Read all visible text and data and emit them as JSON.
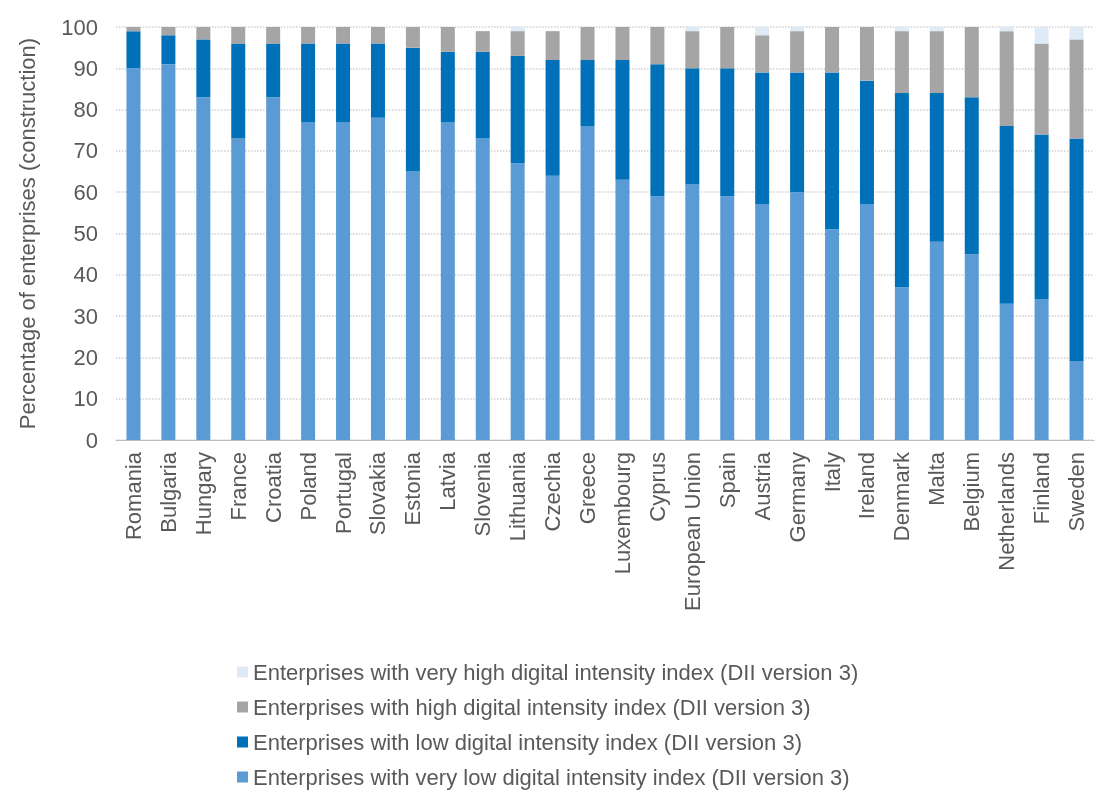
{
  "chart_data": {
    "type": "bar",
    "stacked": true,
    "ylabel": "Percentage of enterprises (construction)",
    "categories": [
      "Romania",
      "Bulgaria",
      "Hungary",
      "France",
      "Croatia",
      "Poland",
      "Portugal",
      "Slovakia",
      "Estonia",
      "Latvia",
      "Slovenia",
      "Lithuania",
      "Czechia",
      "Greece",
      "Luxembourg",
      "Cyprus",
      "European Union",
      "Spain",
      "Austria",
      "Germany",
      "Italy",
      "Ireland",
      "Denmark",
      "Malta",
      "Belgium",
      "Netherlands",
      "Finland",
      "Sweden"
    ],
    "series": [
      {
        "name": "Enterprises with very low digital intensity index (DII version 3)",
        "color": "#5b9bd5",
        "values": [
          90,
          91,
          83,
          73,
          83,
          77,
          77,
          78,
          65,
          77,
          73,
          67,
          64,
          76,
          63,
          59,
          62,
          59,
          57,
          60,
          51,
          57,
          37,
          48,
          45,
          33,
          34,
          19
        ]
      },
      {
        "name": "Enterprises with low digital intensity index (DII version 3)",
        "color": "#0070b8",
        "values": [
          9,
          7,
          14,
          23,
          13,
          19,
          19,
          18,
          30,
          17,
          21,
          26,
          28,
          16,
          29,
          32,
          28,
          31,
          32,
          29,
          38,
          30,
          47,
          36,
          38,
          43,
          40,
          54
        ]
      },
      {
        "name": "Enterprises with high digital intensity index (DII version 3)",
        "color": "#a5a5a5",
        "values": [
          1,
          2,
          3,
          4,
          4,
          4,
          4,
          4,
          5,
          6,
          5,
          6,
          7,
          8,
          8,
          9,
          9,
          10,
          9,
          10,
          11,
          13,
          15,
          15,
          17,
          23,
          22,
          24
        ]
      },
      {
        "name": "Enterprises with very high digital intensity index (DII version 3)",
        "color": "#deebf7",
        "values": [
          0,
          0,
          0,
          0,
          0,
          0,
          0,
          0,
          0,
          0,
          0,
          1,
          0,
          0,
          0,
          0,
          1,
          0,
          2,
          1,
          0,
          0,
          1,
          1,
          0,
          1,
          4,
          3
        ]
      }
    ],
    "ylim": [
      0,
      100
    ],
    "yticks": [
      0,
      10,
      20,
      30,
      40,
      50,
      60,
      70,
      80,
      90,
      100
    ],
    "grid": "y",
    "legend": "bottom"
  }
}
